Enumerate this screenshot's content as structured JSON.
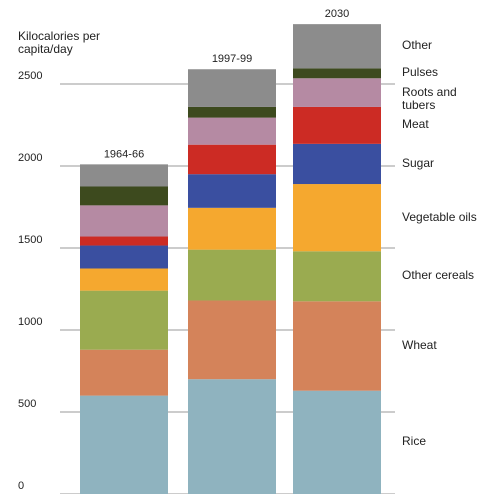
{
  "chart_data": {
    "type": "stacked_bar",
    "y_axis_label": "Kilocalories per capita/day",
    "categories": [
      "1964-66",
      "1997-99",
      "2030"
    ],
    "series": [
      {
        "name": "Rice",
        "color": "#8fb3bf",
        "values": [
          600,
          700,
          630
        ]
      },
      {
        "name": "Wheat",
        "color": "#d4835a",
        "values": [
          280,
          480,
          545
        ]
      },
      {
        "name": "Other cereals",
        "color": "#9aab50",
        "values": [
          360,
          310,
          305
        ]
      },
      {
        "name": "Vegetable oils",
        "color": "#f5a82f",
        "values": [
          135,
          255,
          410
        ]
      },
      {
        "name": "Sugar",
        "color": "#3a4fa0",
        "values": [
          140,
          205,
          245
        ]
      },
      {
        "name": "Meat",
        "color": "#cc2b24",
        "values": [
          55,
          180,
          225
        ]
      },
      {
        "name": "Roots and tubers",
        "color": "#b58aa3",
        "values": [
          190,
          165,
          175
        ]
      },
      {
        "name": "Pulses",
        "color": "#3d4a1e",
        "values": [
          115,
          65,
          60
        ]
      },
      {
        "name": "Other",
        "color": "#8c8c8c",
        "values": [
          135,
          230,
          270
        ]
      }
    ],
    "ylim": [
      0,
      3000
    ],
    "yticks": [
      0,
      500,
      1000,
      1500,
      2000,
      2500
    ],
    "grid": true
  }
}
